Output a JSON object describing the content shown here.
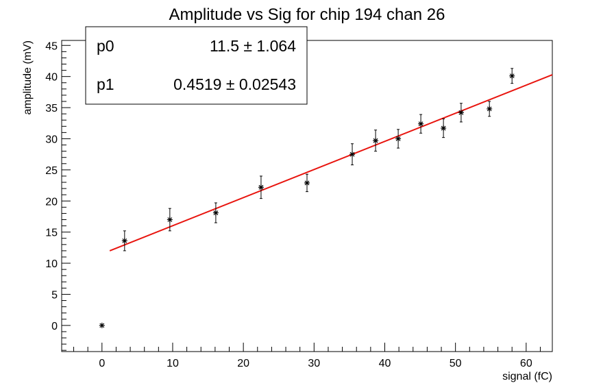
{
  "chart_data": {
    "type": "scatter",
    "title": "Amplitude vs Sig for chip 194 chan 26",
    "xlabel": "signal (fC)",
    "ylabel": "amplitude (mV)",
    "xlim": [
      -5.7,
      63.7
    ],
    "ylim": [
      -4.2,
      45.8
    ],
    "x_ticks": [
      0,
      10,
      20,
      30,
      40,
      50,
      60
    ],
    "y_ticks": [
      0,
      5,
      10,
      15,
      20,
      25,
      30,
      35,
      40,
      45
    ],
    "grid": false,
    "points": [
      {
        "x": 0,
        "y": 0,
        "err": 0
      },
      {
        "x": 3.2,
        "y": 13.6,
        "err": 1.6
      },
      {
        "x": 9.6,
        "y": 17.0,
        "err": 1.8
      },
      {
        "x": 16.1,
        "y": 18.1,
        "err": 1.6
      },
      {
        "x": 22.5,
        "y": 22.2,
        "err": 1.8
      },
      {
        "x": 29.0,
        "y": 22.9,
        "err": 1.4
      },
      {
        "x": 35.4,
        "y": 27.5,
        "err": 1.7
      },
      {
        "x": 38.7,
        "y": 29.7,
        "err": 1.7
      },
      {
        "x": 41.9,
        "y": 30.0,
        "err": 1.5
      },
      {
        "x": 45.1,
        "y": 32.4,
        "err": 1.5
      },
      {
        "x": 48.3,
        "y": 31.7,
        "err": 1.5
      },
      {
        "x": 50.8,
        "y": 34.2,
        "err": 1.5
      },
      {
        "x": 54.8,
        "y": 34.8,
        "err": 1.2
      },
      {
        "x": 58.0,
        "y": 40.1,
        "err": 1.2
      }
    ],
    "fit": {
      "color": "#e8140e",
      "x_range": [
        1.1,
        63.7
      ],
      "p0": 11.5,
      "p1": 0.4519
    },
    "stats": [
      {
        "name": "p0",
        "value": "11.5 ± 1.064"
      },
      {
        "name": "p1",
        "value": "0.4519 ± 0.02543"
      }
    ]
  }
}
